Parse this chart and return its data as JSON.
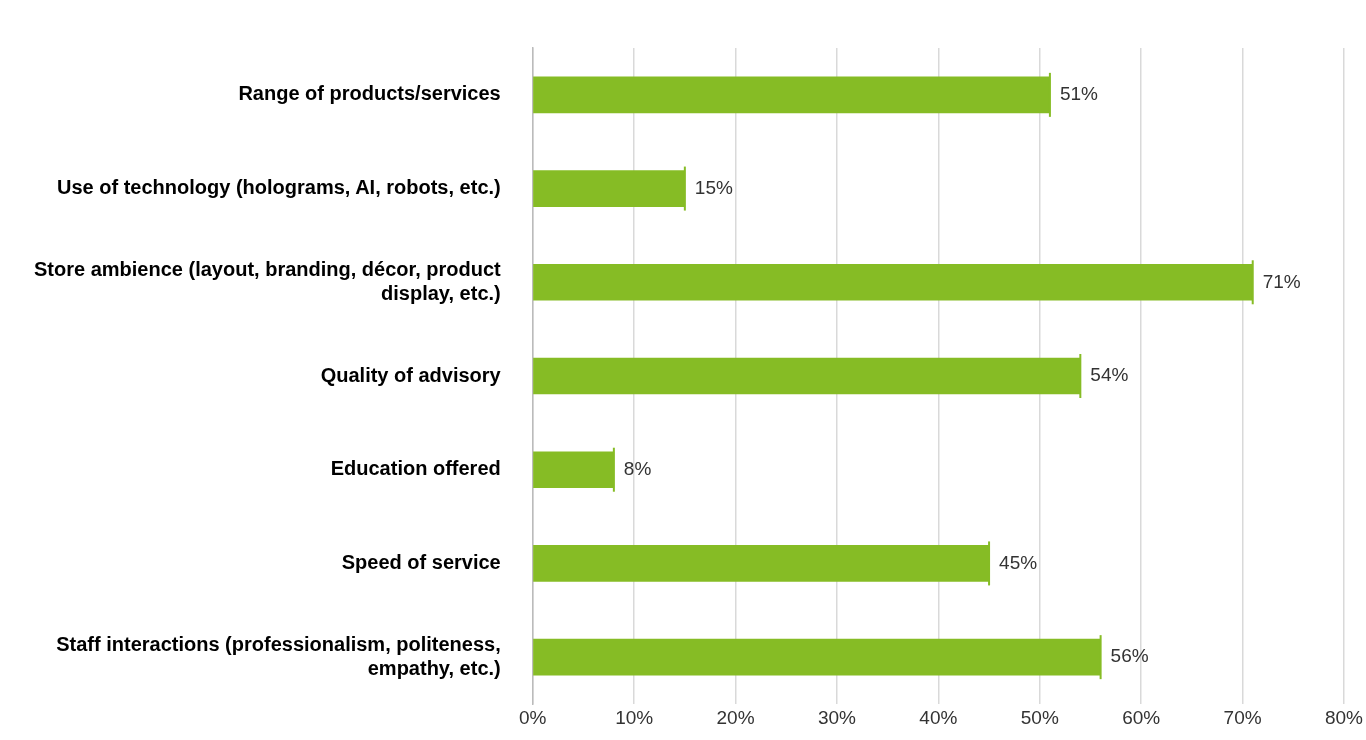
{
  "chart_data": {
    "type": "bar",
    "orientation": "horizontal",
    "categories": [
      "Range of products/services",
      "Use of technology (holograms, AI, robots, etc.)",
      "Store ambience (layout, branding, décor, product display, etc.)",
      "Quality of advisory",
      "Education offered",
      "Speed of service",
      "Staff interactions (professionalism, politeness, empathy, etc.)"
    ],
    "values": [
      51,
      15,
      71,
      54,
      8,
      45,
      56
    ],
    "value_labels": [
      "51%",
      "15%",
      "71%",
      "54%",
      "8%",
      "45%",
      "56%"
    ],
    "color": "#86bc25",
    "xlim": [
      0,
      80
    ],
    "xticks": [
      {
        "value": 0,
        "label": "0%"
      },
      {
        "value": 10,
        "label": "10%"
      },
      {
        "value": 20,
        "label": "20%"
      },
      {
        "value": 30,
        "label": "30%"
      },
      {
        "value": 40,
        "label": "40%"
      },
      {
        "value": 50,
        "label": "50%"
      },
      {
        "value": 60,
        "label": "60%"
      },
      {
        "value": 70,
        "label": "70%"
      },
      {
        "value": 80,
        "label": "80%"
      }
    ],
    "grid": "x",
    "legend": false
  }
}
